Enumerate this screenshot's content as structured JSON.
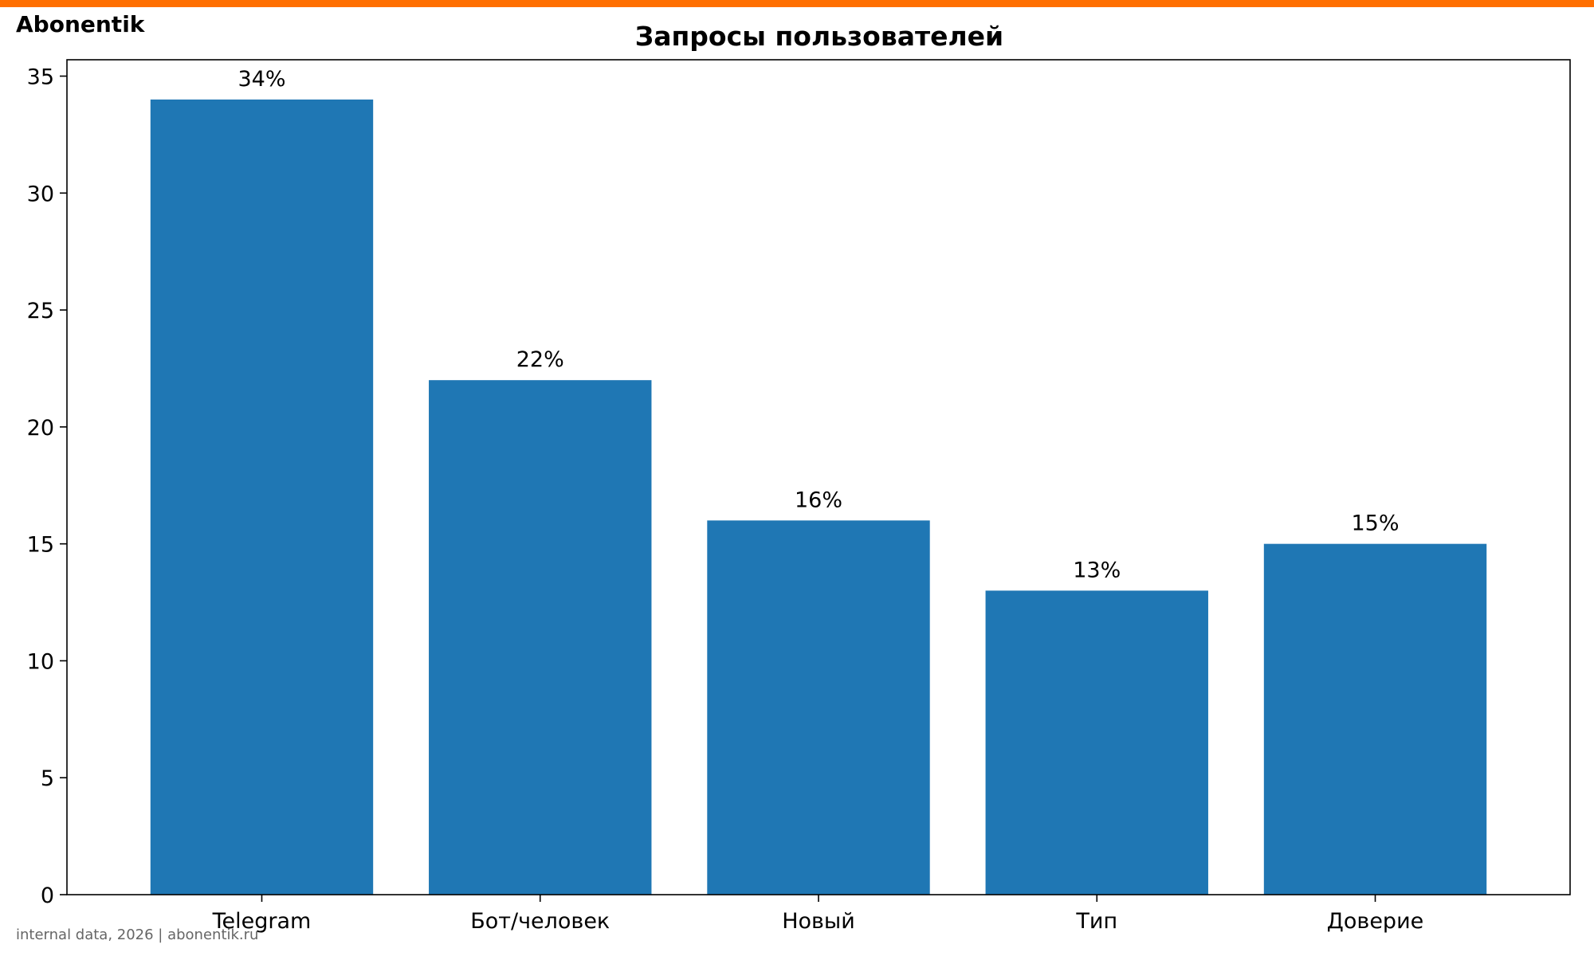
{
  "brand": {
    "name": "Abonentik",
    "accent_color": "#FF6F00"
  },
  "footer": {
    "text": "internal data, 2026 | abonentik.ru"
  },
  "chart_data": {
    "type": "bar",
    "title": "Запросы пользователей",
    "xlabel": "",
    "ylabel": "",
    "categories": [
      "Telegram",
      "Бот/человек",
      "Новый",
      "Тип",
      "Доверие"
    ],
    "values": [
      34,
      22,
      16,
      13,
      15
    ],
    "value_labels": [
      "34%",
      "22%",
      "16%",
      "13%",
      "15%"
    ],
    "ylim": [
      0,
      35.7
    ],
    "yticks": [
      0,
      5,
      10,
      15,
      20,
      25,
      30,
      35
    ],
    "bar_color": "#1F77B4",
    "grid": false,
    "legend": "none"
  }
}
